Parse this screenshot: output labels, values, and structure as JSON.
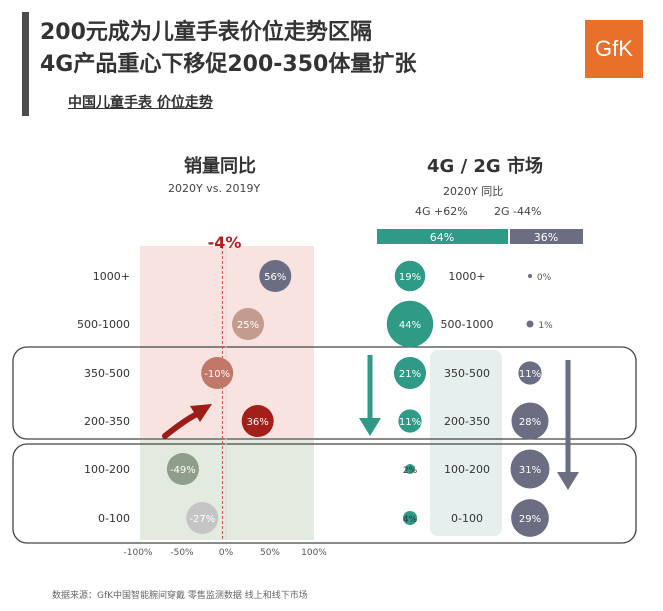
{
  "header": {
    "title_line1": "200元成为儿童手表价位走势区隔",
    "title_line2": "4G产品重心下移促200-350体量扩张",
    "subtitle": "中国儿童手表 价位走势",
    "logo_text": "GfK",
    "brand_color": "#e8702a"
  },
  "left_panel": {
    "title": "销量同比",
    "period": "2020Y vs. 2019Y",
    "market_change": "-4%"
  },
  "right_panel": {
    "title": "4G / 2G 市场",
    "period": "2020Y 同比",
    "growth_4g": "4G +62%",
    "growth_2g": "2G -44%",
    "share_4g": "64%",
    "share_2g": "36%"
  },
  "footer": "数据来源：GfK中国智能腕间穿戴 零售监测数据 线上和线下市场",
  "chart_data": [
    {
      "type": "scatter",
      "title": "销量同比",
      "categories": [
        "1000+",
        "500-1000",
        "350-500",
        "200-350",
        "100-200",
        "0-100"
      ],
      "values": [
        56,
        25,
        -10,
        36,
        -49,
        -27
      ],
      "labels": [
        "56%",
        "25%",
        "-10%",
        "36%",
        "-49%",
        "-27%"
      ],
      "x_ticks": [
        "-100%",
        "-50%",
        "0%",
        "50%",
        "100%"
      ],
      "xlim": [
        -100,
        100
      ],
      "reference_value": -4,
      "reference_label": "-4%",
      "colors": [
        "#6b6e82",
        "#c49c8f",
        "#c27868",
        "#a31f1a",
        "#8f9e8a",
        "#c5c5c5"
      ]
    },
    {
      "type": "scatter",
      "title": "4G",
      "categories": [
        "1000+",
        "500-1000",
        "350-500",
        "200-350",
        "100-200",
        "0-100"
      ],
      "values": [
        19,
        44,
        21,
        11,
        2,
        4
      ],
      "labels": [
        "19%",
        "44%",
        "21%",
        "11%",
        "2%",
        "4%"
      ],
      "color": "#2f9b86"
    },
    {
      "type": "scatter",
      "title": "2G",
      "categories": [
        "1000+",
        "500-1000",
        "350-500",
        "200-350",
        "100-200",
        "0-100"
      ],
      "values": [
        0,
        1,
        11,
        28,
        31,
        29
      ],
      "labels": [
        "0%",
        "1%",
        "11%",
        "28%",
        "31%",
        "29%"
      ],
      "color": "#6b6e82"
    }
  ]
}
